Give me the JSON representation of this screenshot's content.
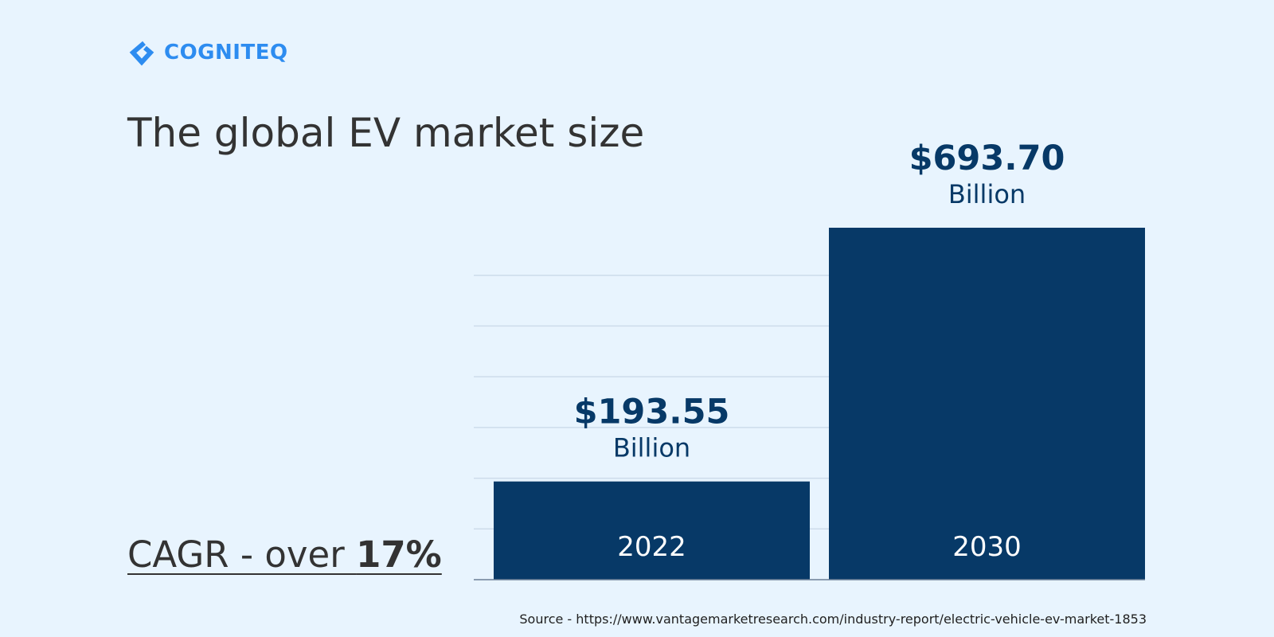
{
  "brand": {
    "name": "COGNITEQ",
    "color": "#2d8cf0",
    "icon": "cogniteq-diamond-logo-icon"
  },
  "title": "The global EV market size",
  "cagr": {
    "label": "CAGR - over ",
    "value": "17%"
  },
  "source": "Source - https://www.vantagemarketresearch.com/industry-report/electric-vehicle-ev-market-1853",
  "colors": {
    "background": "#e8f4fe",
    "bar": "#073967",
    "value_label": "#073967",
    "gridline": "#cddceb",
    "text": "#333333"
  },
  "chart_data": {
    "type": "bar",
    "categories": [
      "2022",
      "2030"
    ],
    "values": [
      193.55,
      693.7
    ],
    "value_labels": [
      "$193.55",
      "$693.70"
    ],
    "unit_label": "Billion",
    "title": "The global EV market size",
    "xlabel": "",
    "ylabel": "",
    "ylim": [
      0,
      800
    ],
    "grid": true,
    "legend": "none"
  }
}
